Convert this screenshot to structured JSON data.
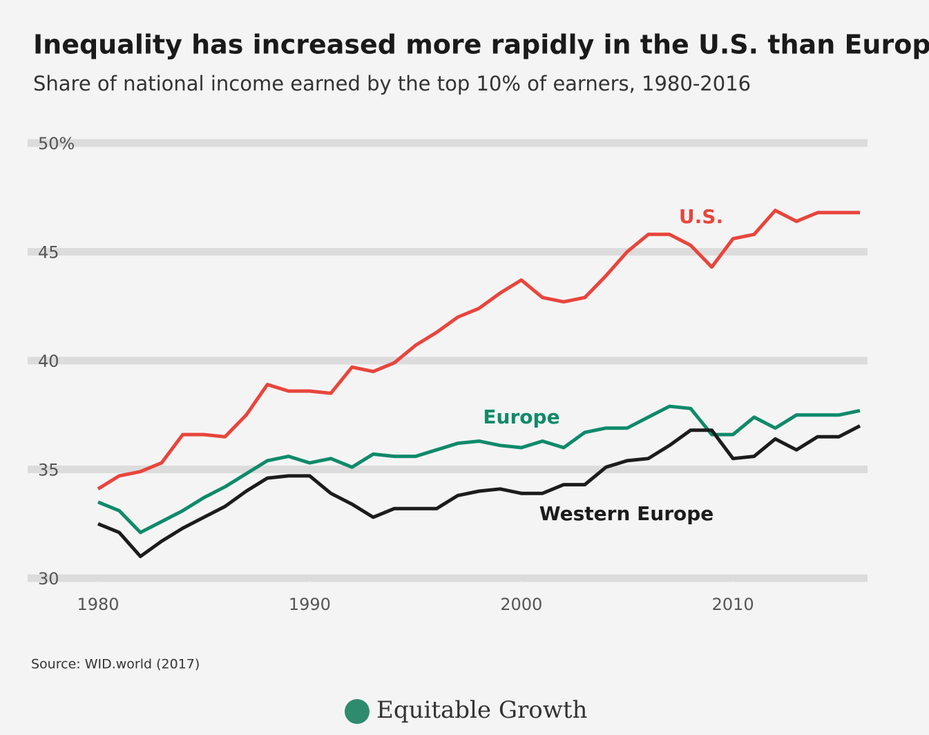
{
  "chart_data": {
    "type": "line",
    "title": "Inequality has increased more rapidly in the U.S. than Europe",
    "subtitle": "Share of national income earned by the top 10% of earners, 1980-2016",
    "source": "Source: WID.world (2017)",
    "brand": "Equitable Growth",
    "x": [
      1980,
      1981,
      1982,
      1983,
      1984,
      1985,
      1986,
      1987,
      1988,
      1989,
      1990,
      1991,
      1992,
      1993,
      1994,
      1995,
      1996,
      1997,
      1998,
      1999,
      2000,
      2001,
      2002,
      2003,
      2004,
      2005,
      2006,
      2007,
      2008,
      2009,
      2010,
      2011,
      2012,
      2013,
      2014,
      2015,
      2016
    ],
    "xlim": [
      1980,
      2016
    ],
    "xticks": [
      1980,
      1990,
      2000,
      2010
    ],
    "ylim": [
      30,
      50
    ],
    "yticks": [
      30,
      35,
      40,
      45,
      {
        "value": 50,
        "label": "50%"
      }
    ],
    "grid": true,
    "series": [
      {
        "name": "U.S.",
        "color": "#e8453c",
        "values": [
          34.1,
          34.7,
          34.9,
          35.3,
          36.6,
          36.6,
          36.5,
          37.5,
          38.9,
          38.6,
          38.6,
          38.5,
          39.7,
          39.5,
          39.9,
          40.7,
          41.3,
          42.0,
          42.4,
          43.1,
          43.7,
          42.9,
          42.7,
          42.9,
          43.9,
          45.0,
          45.8,
          45.8,
          45.3,
          44.3,
          45.6,
          45.8,
          46.9,
          46.4,
          46.8,
          46.8,
          46.8
        ]
      },
      {
        "name": "Europe",
        "color": "#0f8a6a",
        "values": [
          33.5,
          33.1,
          32.1,
          32.6,
          33.1,
          33.7,
          34.2,
          34.8,
          35.4,
          35.6,
          35.3,
          35.5,
          35.1,
          35.7,
          35.6,
          35.6,
          35.9,
          36.2,
          36.3,
          36.1,
          36.0,
          36.3,
          36.0,
          36.7,
          36.9,
          36.9,
          37.4,
          37.9,
          37.8,
          36.6,
          36.6,
          37.4,
          36.9,
          37.5,
          37.5,
          37.5,
          37.7
        ]
      },
      {
        "name": "Western Europe",
        "color": "#1c1c1c",
        "values": [
          32.5,
          32.1,
          31.0,
          31.7,
          32.3,
          32.8,
          33.3,
          34.0,
          34.6,
          34.7,
          34.7,
          33.9,
          33.4,
          32.8,
          33.2,
          33.2,
          33.2,
          33.8,
          34.0,
          34.1,
          33.9,
          33.9,
          34.3,
          34.3,
          35.1,
          35.4,
          35.5,
          36.1,
          36.8,
          36.8,
          35.5,
          35.6,
          36.4,
          35.9,
          36.5,
          36.5,
          37.0
        ]
      }
    ]
  }
}
